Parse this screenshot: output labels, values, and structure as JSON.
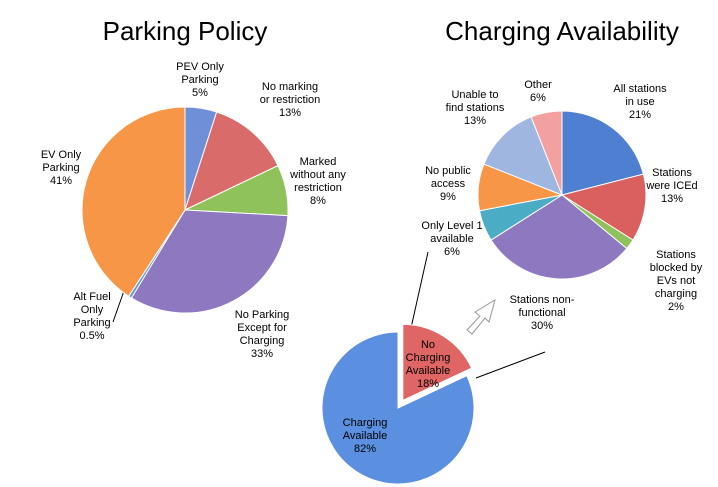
{
  "chart_data": [
    {
      "type": "pie",
      "title": "Parking Policy",
      "categories": [
        "PEV Only\nParking",
        "No marking\nor restriction",
        "Marked\nwithout any\nrestriction",
        "No Parking\nExcept for\nCharging",
        "Alt Fuel\nOnly\nParking",
        "EV Only\nParking"
      ],
      "values": [
        5,
        13,
        8,
        33,
        0.5,
        41
      ],
      "value_labels": [
        "5%",
        "13%",
        "8%",
        "33%",
        "0.5%",
        "41%"
      ],
      "colors": [
        "#6f8fd9",
        "#d96b6b",
        "#8fc25a",
        "#8e78c0",
        "#5b9bd5",
        "#f79646"
      ]
    },
    {
      "type": "pie",
      "title": "Charging Availability",
      "categories": [
        "All stations\nin use",
        "Stations\nwere ICEd",
        "Stations\nblocked by\nEVs not\ncharging",
        "Stations non-\nfunctional",
        "Only Level 1\navailable",
        "No public\naccess",
        "Unable to\nfind stations",
        "Other"
      ],
      "values": [
        21,
        13,
        2,
        30,
        6,
        9,
        13,
        6
      ],
      "value_labels": [
        "21%",
        "13%",
        "2%",
        "30%",
        "6%",
        "9%",
        "13%",
        "6%"
      ],
      "colors": [
        "#4f7fd0",
        "#d9605f",
        "#8fc25a",
        "#8e78c0",
        "#4bacc6",
        "#f79646",
        "#9fb6e0",
        "#f2a0a0"
      ]
    },
    {
      "type": "pie",
      "categories": [
        "No\nCharging\nAvailable",
        "Charging\nAvailable"
      ],
      "values": [
        18,
        82
      ],
      "value_labels": [
        "18%",
        "82%"
      ],
      "colors": [
        "#e06666",
        "#5b8fe0"
      ],
      "exploded": [
        true,
        false
      ]
    }
  ]
}
